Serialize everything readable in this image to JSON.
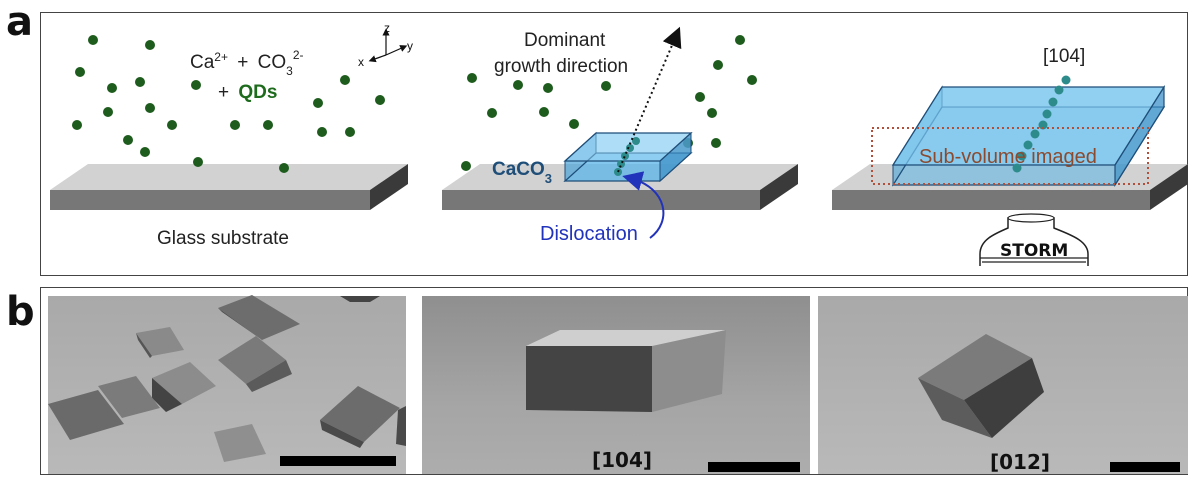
{
  "panel_a": {
    "letter": "a",
    "reagents": {
      "ca": "Ca",
      "ca_sup": "2+",
      "plus": "+",
      "co": "CO",
      "co_sub": "3",
      "co_sup": "2-",
      "plus2": "+",
      "qds": "QDs"
    },
    "axes": {
      "z": "z",
      "x": "x",
      "y": "y"
    },
    "substrate_label": "Glass substrate",
    "growth_label_line1": "Dominant",
    "growth_label_line2": "growth direction",
    "crystal_label": "CaCO",
    "crystal_label_sub": "3",
    "dislocation_label": "Dislocation",
    "direction_label": "[104]",
    "subvolume_label": "Sub-volume imaged",
    "microscope_label": "STORM"
  },
  "panel_b": {
    "letter": "b",
    "images": [
      {
        "label": ""
      },
      {
        "label": "[104]"
      },
      {
        "label": "[012]"
      }
    ]
  },
  "colors": {
    "qd_dot": "#1e5c1e",
    "qds_text": "#1e6b1e",
    "crystal_fill": "#5ab4e8",
    "crystal_label": "#1f4e79",
    "dislocation": "#2233bb",
    "subvolume_box": "#b0503a",
    "chain_dot": "#2e8b8b"
  }
}
